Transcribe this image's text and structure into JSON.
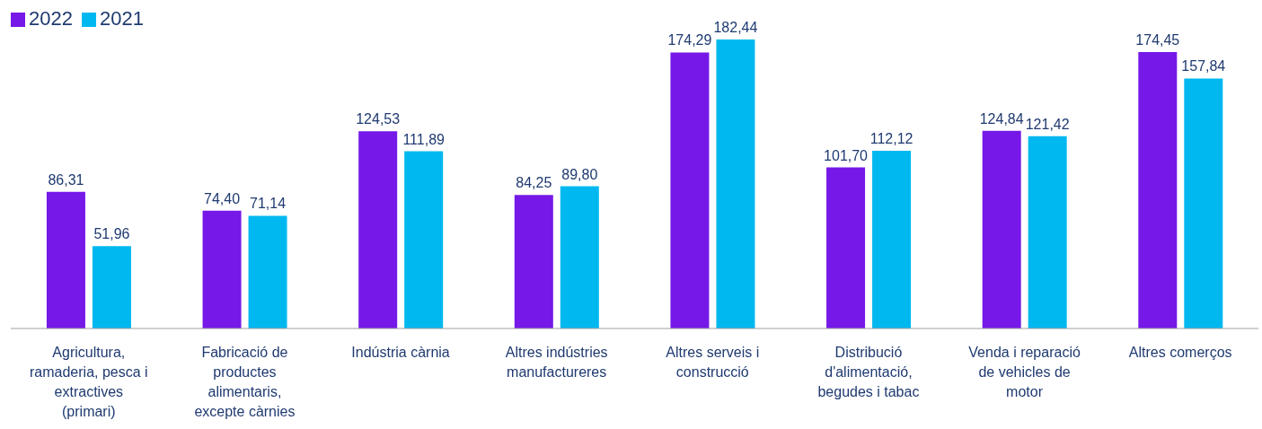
{
  "chart_data": {
    "type": "bar",
    "categories": [
      "Agricultura, ramaderia, pesca i extractives (primari)",
      "Fabricació de productes alimentaris, excepte càrnies",
      "Indústria càrnia",
      "Altres indústries manufactureres",
      "Altres serveis i construcció",
      "Distribució d'alimentació, begudes i tabac",
      "Venda i reparació de vehicles de motor",
      "Altres comerços"
    ],
    "series": [
      {
        "name": "2022",
        "color": "#7518e8",
        "values": [
          86.31,
          74.4,
          124.53,
          84.25,
          174.29,
          101.7,
          124.84,
          174.45
        ],
        "value_labels": [
          "86,31",
          "74,40",
          "124,53",
          "84,25",
          "174,29",
          "101,70",
          "124,84",
          "174,45"
        ]
      },
      {
        "name": "2021",
        "color": "#00b8f0",
        "values": [
          51.96,
          71.14,
          111.89,
          89.8,
          182.44,
          112.12,
          121.42,
          157.84
        ],
        "value_labels": [
          "51,96",
          "71,14",
          "111,89",
          "89,80",
          "182,44",
          "112,12",
          "121,42",
          "157,84"
        ]
      }
    ],
    "legend": "top left",
    "grid": false
  }
}
